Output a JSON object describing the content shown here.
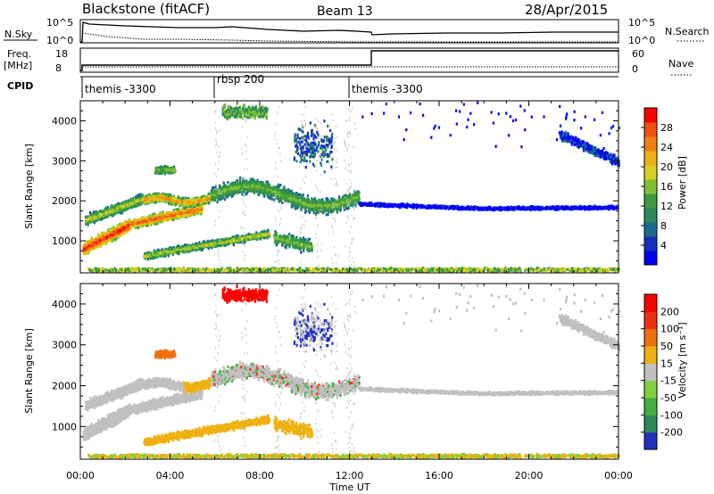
{
  "header": {
    "station": "Blackstone (fitACF)",
    "beam": "Beam 13",
    "date": "28/Apr/2015"
  },
  "top_panels": {
    "nsky": {
      "label": "N.Sky",
      "ticks": [
        "10^5",
        "10^0"
      ],
      "right_label": "N.Search",
      "right_ticks": [
        "10^5",
        "10^0"
      ]
    },
    "freq": {
      "label": "Freq.",
      "unit": "[MHz]",
      "ticks": [
        "18",
        "8"
      ],
      "right_label": "Nave",
      "right_ticks": [
        "60",
        "0"
      ]
    },
    "cpid": {
      "label": "CPID",
      "segments": [
        {
          "name": "themis -3300",
          "start_h": 0,
          "end_h": 6
        },
        {
          "name": "rbsp 200",
          "start_h": 6,
          "end_h": 12
        },
        {
          "name": "themis -3300",
          "start_h": 12,
          "end_h": 24
        }
      ]
    }
  },
  "chart_data": [
    {
      "type": "heatmap",
      "name": "power",
      "ylabel": "Slant Range [km]",
      "ylim": [
        200,
        4500
      ],
      "yticks": [
        1000,
        2000,
        3000,
        4000
      ],
      "xlim": [
        0,
        24
      ],
      "colorbar": {
        "label": "Power [dB]",
        "ticks": [
          "28",
          "24",
          "20",
          "16",
          "12",
          "8",
          "4"
        ]
      },
      "colors": [
        "#0000ff",
        "#1030c0",
        "#1a6a8c",
        "#2a8a5a",
        "#3d9a40",
        "#80c030",
        "#d7d020",
        "#f0b010",
        "#f08010",
        "#f05010",
        "#ff0000"
      ]
    },
    {
      "type": "heatmap",
      "name": "velocity",
      "ylabel": "Slant Range [km]",
      "ylim": [
        200,
        4500
      ],
      "yticks": [
        1000,
        2000,
        3000,
        4000
      ],
      "xlim": [
        0,
        24
      ],
      "colorbar": {
        "label": "Velocity [m s⁻¹]",
        "ticks": [
          "200",
          "100",
          "50",
          "15",
          "-15",
          "-50",
          "-100",
          "-200"
        ]
      },
      "colors": [
        "#2030c0",
        "#2a8a5a",
        "#40b040",
        "#80d040",
        "#c0c0c0",
        "#f0b010",
        "#f07010",
        "#f03010",
        "#ff0000"
      ]
    }
  ],
  "xaxis": {
    "label": "Time UT",
    "ticks": [
      "00:00",
      "04:00",
      "08:00",
      "12:00",
      "16:00",
      "20:00",
      "00:00"
    ]
  }
}
